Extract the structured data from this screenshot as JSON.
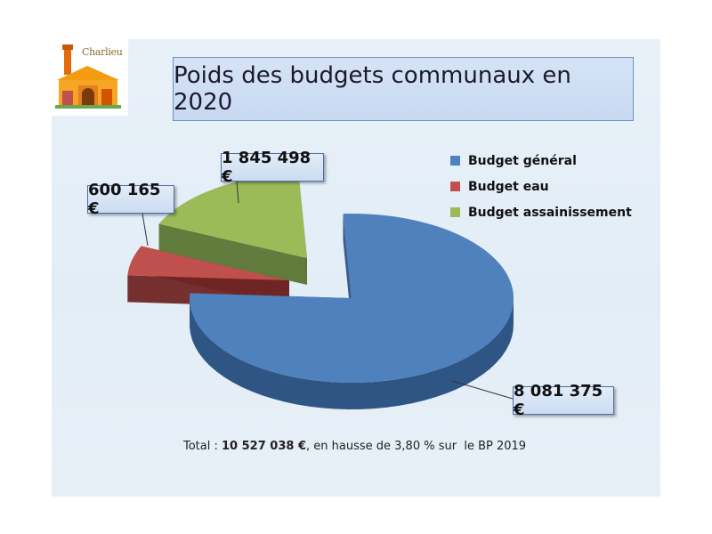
{
  "logo": {
    "text": "Charlieu",
    "icon": "charlieu-town-logo"
  },
  "title": "Poids des budgets communaux en 2020",
  "chart_data": {
    "type": "pie",
    "title": "Poids des budgets communaux en 2020",
    "categories": [
      "Budget général",
      "Budget eau",
      "Budget assainissement"
    ],
    "values": [
      8081375,
      600165,
      1845498
    ],
    "value_labels": [
      "8 081 375 €",
      "600 165 €",
      "1 845 498 €"
    ],
    "colors": [
      "#4f81bd",
      "#c0504d",
      "#9bbb59"
    ],
    "legend": "top-right",
    "exploded": true,
    "style": "3d"
  },
  "footer": {
    "prefix": "Total : ",
    "total": "10 527 038 €",
    "suffix": ", en hausse de 3,80 % sur  le BP 2019"
  }
}
